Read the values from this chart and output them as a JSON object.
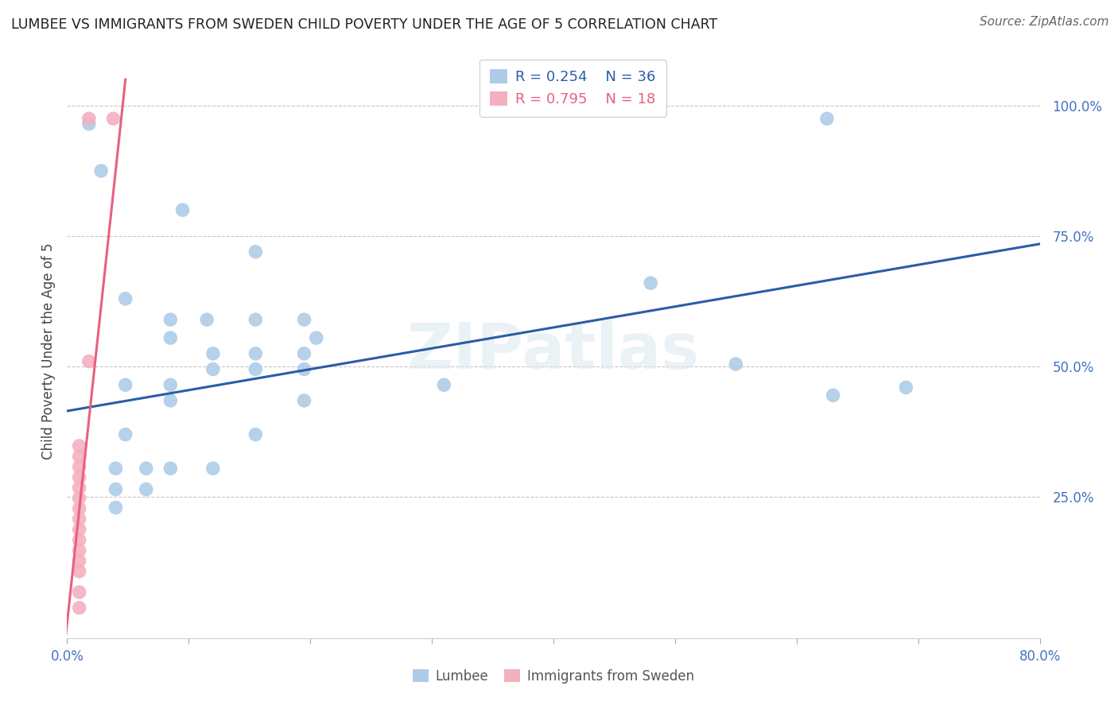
{
  "title": "LUMBEE VS IMMIGRANTS FROM SWEDEN CHILD POVERTY UNDER THE AGE OF 5 CORRELATION CHART",
  "source": "Source: ZipAtlas.com",
  "ylabel": "Child Poverty Under the Age of 5",
  "xlim": [
    0.0,
    0.8
  ],
  "ylim": [
    -0.02,
    1.08
  ],
  "lumbee_R": 0.254,
  "lumbee_N": 36,
  "sweden_R": 0.795,
  "sweden_N": 18,
  "lumbee_color": "#aecce8",
  "sweden_color": "#f5b0c0",
  "lumbee_line_color": "#2b5ca8",
  "sweden_line_color": "#e86080",
  "lumbee_line": [
    [
      0.0,
      0.415
    ],
    [
      0.8,
      0.735
    ]
  ],
  "sweden_line": [
    [
      -0.005,
      -0.1
    ],
    [
      0.048,
      1.05
    ]
  ],
  "lumbee_scatter": [
    [
      0.018,
      0.965
    ],
    [
      0.028,
      0.875
    ],
    [
      0.095,
      0.8
    ],
    [
      0.155,
      0.72
    ],
    [
      0.048,
      0.63
    ],
    [
      0.085,
      0.59
    ],
    [
      0.115,
      0.59
    ],
    [
      0.155,
      0.59
    ],
    [
      0.195,
      0.59
    ],
    [
      0.085,
      0.555
    ],
    [
      0.205,
      0.555
    ],
    [
      0.12,
      0.525
    ],
    [
      0.155,
      0.525
    ],
    [
      0.195,
      0.525
    ],
    [
      0.12,
      0.495
    ],
    [
      0.155,
      0.495
    ],
    [
      0.195,
      0.495
    ],
    [
      0.048,
      0.465
    ],
    [
      0.085,
      0.465
    ],
    [
      0.31,
      0.465
    ],
    [
      0.085,
      0.435
    ],
    [
      0.195,
      0.435
    ],
    [
      0.048,
      0.37
    ],
    [
      0.155,
      0.37
    ],
    [
      0.04,
      0.305
    ],
    [
      0.065,
      0.305
    ],
    [
      0.085,
      0.305
    ],
    [
      0.12,
      0.305
    ],
    [
      0.04,
      0.265
    ],
    [
      0.065,
      0.265
    ],
    [
      0.04,
      0.23
    ],
    [
      0.48,
      0.66
    ],
    [
      0.55,
      0.505
    ],
    [
      0.63,
      0.445
    ],
    [
      0.69,
      0.46
    ],
    [
      0.625,
      0.975
    ]
  ],
  "sweden_scatter": [
    [
      0.018,
      0.975
    ],
    [
      0.038,
      0.975
    ],
    [
      0.018,
      0.51
    ],
    [
      0.01,
      0.348
    ],
    [
      0.01,
      0.328
    ],
    [
      0.01,
      0.308
    ],
    [
      0.01,
      0.288
    ],
    [
      0.01,
      0.268
    ],
    [
      0.01,
      0.248
    ],
    [
      0.01,
      0.228
    ],
    [
      0.01,
      0.208
    ],
    [
      0.01,
      0.188
    ],
    [
      0.01,
      0.168
    ],
    [
      0.01,
      0.148
    ],
    [
      0.01,
      0.128
    ],
    [
      0.01,
      0.108
    ],
    [
      0.01,
      0.068
    ],
    [
      0.01,
      0.038
    ]
  ],
  "watermark": "ZIPatlas",
  "background_color": "#ffffff",
  "grid_color": "#c8c8c8"
}
